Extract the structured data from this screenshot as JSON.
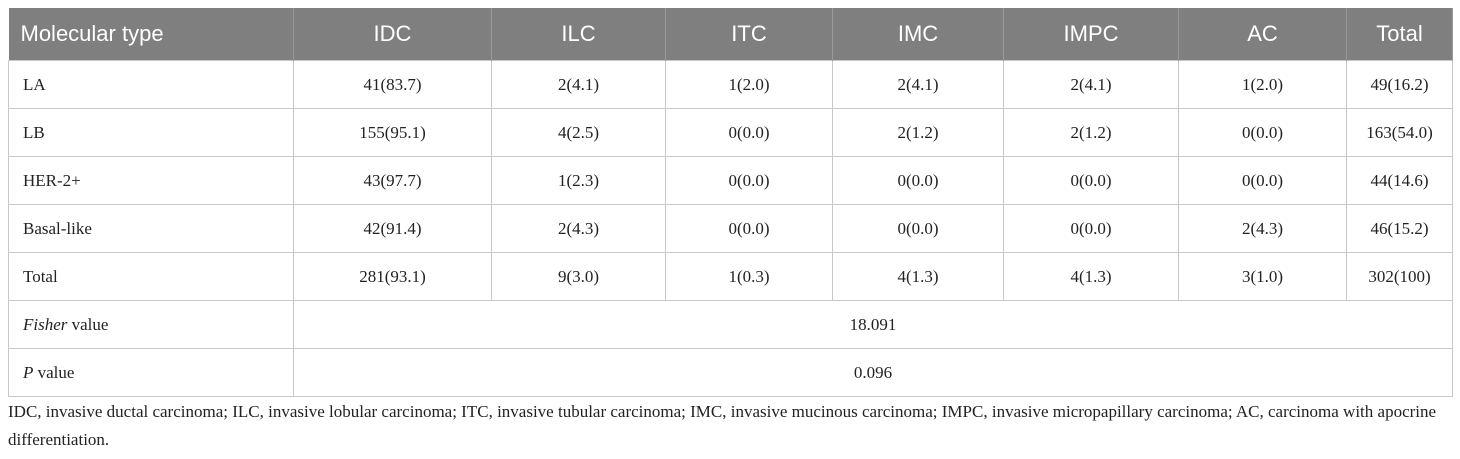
{
  "table": {
    "header": [
      "Molecular type",
      "IDC",
      "ILC",
      "ITC",
      "IMC",
      "IMPC",
      "AC",
      "Total"
    ],
    "rows": [
      [
        "LA",
        "41(83.7)",
        "2(4.1)",
        "1(2.0)",
        "2(4.1)",
        "2(4.1)",
        "1(2.0)",
        "49(16.2)"
      ],
      [
        "LB",
        "155(95.1)",
        "4(2.5)",
        "0(0.0)",
        "2(1.2)",
        "2(1.2)",
        "0(0.0)",
        "163(54.0)"
      ],
      [
        "HER-2+",
        "43(97.7)",
        "1(2.3)",
        "0(0.0)",
        "0(0.0)",
        "0(0.0)",
        "0(0.0)",
        "44(14.6)"
      ],
      [
        "Basal-like",
        "42(91.4)",
        "2(4.3)",
        "0(0.0)",
        "0(0.0)",
        "0(0.0)",
        "2(4.3)",
        "46(15.2)"
      ],
      [
        "Total",
        "281(93.1)",
        "9(3.0)",
        "1(0.3)",
        "4(1.3)",
        "4(1.3)",
        "3(1.0)",
        "302(100)"
      ]
    ],
    "stats": [
      {
        "label_italic": "Fisher",
        "label": "value",
        "value": "18.091"
      },
      {
        "label_italic": "P",
        "label": "value",
        "value": "0.096"
      }
    ]
  },
  "footnote": "IDC, invasive ductal carcinoma; ILC, invasive lobular carcinoma; ITC, invasive tubular carcinoma; IMC, invasive mucinous carcinoma; IMPC, invasive micropapillary carcinoma; AC, carcinoma with apocrine differentiation."
}
